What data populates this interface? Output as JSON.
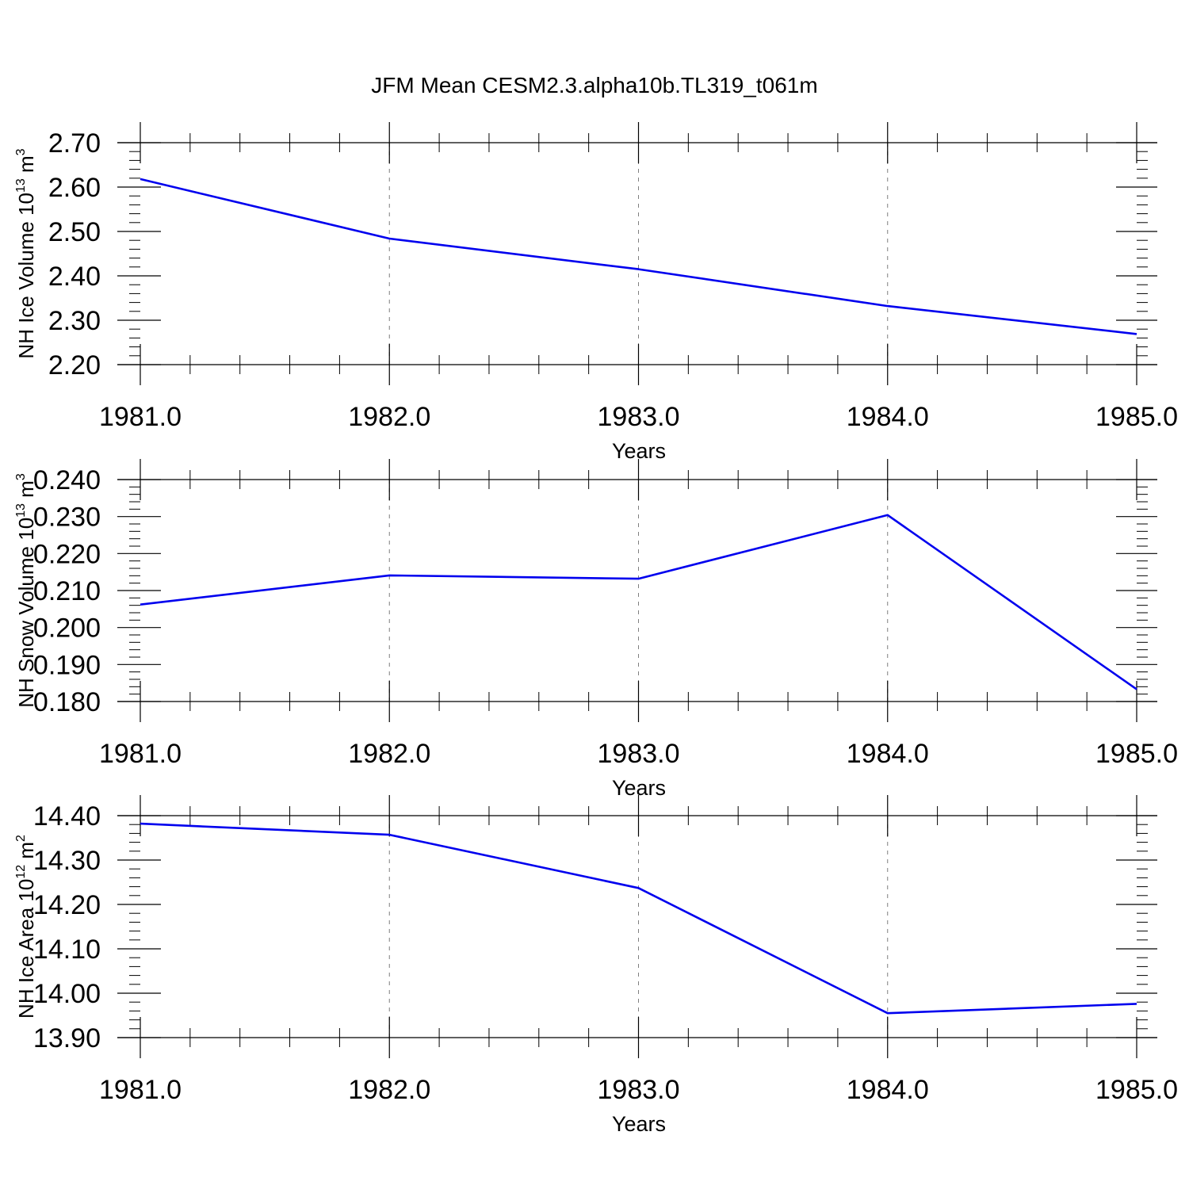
{
  "title": "JFM Mean CESM2.3.alpha10b.TL319_t061m",
  "colors": {
    "series": "#0000ee",
    "grid": "#7f7f7f",
    "axes": "#000000"
  },
  "chart_data": [
    {
      "type": "line",
      "xlabel": "Years",
      "ylabel_text": "NH Ice Volume 10",
      "ylabel_exp": "13",
      "ylabel_unit": " m",
      "ylabel_unit_exp": "3",
      "x": [
        1981,
        1982,
        1983,
        1984,
        1985
      ],
      "x_tick_labels": [
        "1981.0",
        "1982.0",
        "1983.0",
        "1984.0",
        "1985.0"
      ],
      "y": [
        2.618,
        2.484,
        2.415,
        2.332,
        2.269
      ],
      "y_ticks": [
        2.2,
        2.3,
        2.4,
        2.5,
        2.6,
        2.7
      ],
      "y_tick_labels": [
        "2.20",
        "2.30",
        "2.40",
        "2.50",
        "2.60",
        "2.70"
      ],
      "xlim": [
        1981,
        1985
      ],
      "ylim": [
        2.2,
        2.7
      ],
      "grid": "vertical dashed at major x ticks"
    },
    {
      "type": "line",
      "xlabel": "Years",
      "ylabel_text": "NH Snow Volume 10",
      "ylabel_exp": "13",
      "ylabel_unit": " m",
      "ylabel_unit_exp": "3",
      "x": [
        1981,
        1982,
        1983,
        1984,
        1985
      ],
      "x_tick_labels": [
        "1981.0",
        "1982.0",
        "1983.0",
        "1984.0",
        "1985.0"
      ],
      "y": [
        0.2062,
        0.2141,
        0.2132,
        0.2304,
        0.1833
      ],
      "y_ticks": [
        0.18,
        0.19,
        0.2,
        0.21,
        0.22,
        0.23,
        0.24
      ],
      "y_tick_labels": [
        "0.180",
        "0.190",
        "0.200",
        "0.210",
        "0.220",
        "0.230",
        "0.240"
      ],
      "xlim": [
        1981,
        1985
      ],
      "ylim": [
        0.18,
        0.24
      ],
      "grid": "vertical dashed at major x ticks"
    },
    {
      "type": "line",
      "xlabel": "Years",
      "ylabel_text": "NH Ice Area 10",
      "ylabel_exp": "12",
      "ylabel_unit": " m",
      "ylabel_unit_exp": "2",
      "x": [
        1981,
        1982,
        1983,
        1984,
        1985
      ],
      "x_tick_labels": [
        "1981.0",
        "1982.0",
        "1983.0",
        "1984.0",
        "1985.0"
      ],
      "y": [
        14.382,
        14.357,
        14.237,
        13.955,
        13.976
      ],
      "y_ticks": [
        13.9,
        14.0,
        14.1,
        14.2,
        14.3,
        14.4
      ],
      "y_tick_labels": [
        "13.90",
        "14.00",
        "14.10",
        "14.20",
        "14.30",
        "14.40"
      ],
      "xlim": [
        1981,
        1985
      ],
      "ylim": [
        13.9,
        14.4
      ],
      "grid": "vertical dashed at major x ticks"
    }
  ]
}
